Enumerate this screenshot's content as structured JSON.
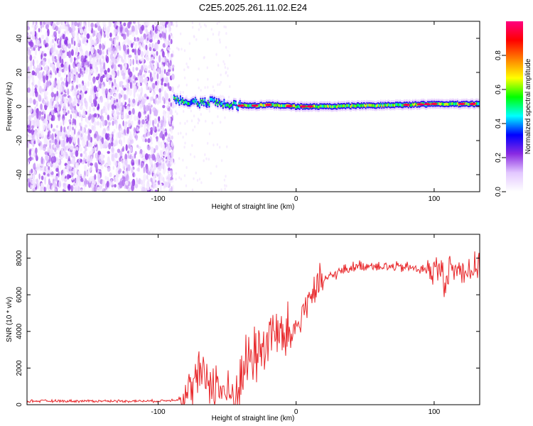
{
  "title": "C2E5.2025.261.11.02.E24",
  "chart_data": [
    {
      "type": "heatmap",
      "name": "spectrogram",
      "xlabel": "Height of straight line (km)",
      "ylabel": "Frequency (Hz)",
      "xlim": [
        -195,
        133
      ],
      "ylim": [
        -50,
        50
      ],
      "xticks": [
        -100,
        0,
        100
      ],
      "xtick_labels": [
        "-100",
        "0",
        "100"
      ],
      "yticks": [
        -40,
        -20,
        0,
        20,
        40
      ],
      "ytick_labels": [
        "-40",
        "-20",
        "0",
        "20",
        "40"
      ],
      "noise_region_end_x": -89,
      "ridge": {
        "x": [
          -89,
          -80,
          -70,
          -60,
          -50,
          -40,
          -30,
          -20,
          -10,
          0,
          20,
          50,
          80,
          100,
          110,
          120,
          133
        ],
        "y": [
          4,
          3,
          2,
          3,
          1,
          0.5,
          0.5,
          1,
          0.5,
          0,
          0,
          0.5,
          1,
          1.5,
          1.5,
          1.5,
          1.5
        ]
      },
      "colorbar": {
        "label": "Normalized spectral amplitude",
        "range": [
          0,
          1
        ],
        "ticks": [
          0.0,
          0.2,
          0.4,
          0.6,
          0.8
        ],
        "tick_labels": [
          "0.0",
          "0.2",
          "0.4",
          "0.6",
          "0.8"
        ],
        "colors": [
          "#ffffff",
          "#e3c8ff",
          "#8a2be2",
          "#0000ff",
          "#00ffff",
          "#00ff00",
          "#ffff00",
          "#ff8000",
          "#ff0000",
          "#ff0080"
        ]
      }
    },
    {
      "type": "line",
      "name": "snr",
      "xlabel": "Height of straight line (km)",
      "ylabel": "SNR (10 * v/v)",
      "xlim": [
        -195,
        133
      ],
      "ylim": [
        0,
        9300
      ],
      "xticks": [
        -100,
        0,
        100
      ],
      "xtick_labels": [
        "-100",
        "0",
        "100"
      ],
      "yticks": [
        0,
        2000,
        4000,
        6000,
        8000
      ],
      "ytick_labels": [
        "0",
        "2000",
        "4000",
        "6000",
        "8000"
      ],
      "color": "#e8282b",
      "series": [
        {
          "name": "SNR",
          "x": [
            -195,
            -180,
            -160,
            -140,
            -120,
            -100,
            -90,
            -85,
            -80,
            -75,
            -70,
            -65,
            -60,
            -55,
            -50,
            -45,
            -40,
            -35,
            -30,
            -25,
            -20,
            -15,
            -10,
            -5,
            0,
            5,
            10,
            15,
            20,
            25,
            30,
            40,
            50,
            60,
            70,
            80,
            90,
            100,
            105,
            108,
            110,
            115,
            120,
            125,
            133
          ],
          "y": [
            200,
            200,
            200,
            200,
            200,
            200,
            250,
            300,
            400,
            1000,
            1600,
            1500,
            1200,
            900,
            600,
            300,
            1400,
            2500,
            2800,
            3000,
            3800,
            4000,
            3500,
            3800,
            4200,
            5000,
            6000,
            6200,
            6800,
            7000,
            7200,
            7500,
            7600,
            7600,
            7500,
            7500,
            7400,
            7300,
            7400,
            6500,
            7500,
            7300,
            7400,
            7400,
            7400
          ]
        }
      ]
    }
  ]
}
